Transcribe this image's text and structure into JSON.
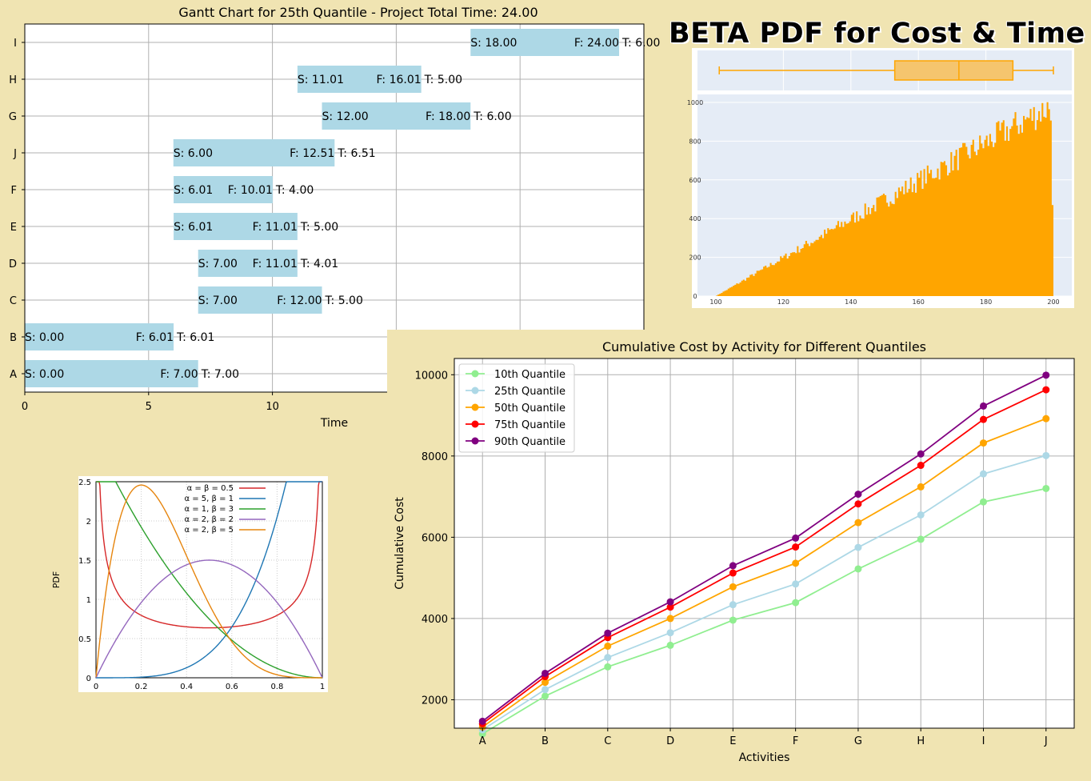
{
  "headline": "BETA PDF for Cost & Time",
  "colors": {
    "page_bg": "#f0e4b2",
    "gantt_bar": "#add8e6",
    "hist": "#ffa500",
    "plot_bg": "#e5ecf6",
    "q10": "#90ee90",
    "q25": "#add8e6",
    "q50": "#ffa500",
    "q75": "#ff0000",
    "q90": "#800080"
  },
  "chart_data": [
    {
      "type": "bar",
      "orientation": "horizontal",
      "title": "Gantt Chart for 25th Quantile - Project Total Time: 24.00",
      "xlabel": "Time",
      "ylabel": "",
      "xlim": [
        0,
        25
      ],
      "xticks": [
        "0",
        "5",
        "10"
      ],
      "grid": true,
      "tasks": [
        {
          "name": "I",
          "start": 18.0,
          "finish": 24.0,
          "start_label": "S: 18.00",
          "finish_label": "F: 24.00",
          "dur_label": "T: 6.00"
        },
        {
          "name": "H",
          "start": 11.01,
          "finish": 16.01,
          "start_label": "S: 11.01",
          "finish_label": "F: 16.01",
          "dur_label": "T: 5.00"
        },
        {
          "name": "G",
          "start": 12.0,
          "finish": 18.0,
          "start_label": "S: 12.00",
          "finish_label": "F: 18.00",
          "dur_label": "T: 6.00"
        },
        {
          "name": "J",
          "start": 6.0,
          "finish": 12.51,
          "start_label": "S: 6.00",
          "finish_label": "F: 12.51",
          "dur_label": "T: 6.51"
        },
        {
          "name": "F",
          "start": 6.01,
          "finish": 10.01,
          "start_label": "S: 6.01",
          "finish_label": "F: 10.01",
          "dur_label": "T: 4.00"
        },
        {
          "name": "E",
          "start": 6.01,
          "finish": 11.01,
          "start_label": "S: 6.01",
          "finish_label": "F: 11.01",
          "dur_label": "T: 5.00"
        },
        {
          "name": "D",
          "start": 7.0,
          "finish": 11.01,
          "start_label": "S: 7.00",
          "finish_label": "F: 11.01",
          "dur_label": "T: 4.01"
        },
        {
          "name": "C",
          "start": 7.0,
          "finish": 12.0,
          "start_label": "S: 7.00",
          "finish_label": "F: 12.00",
          "dur_label": "T: 5.00"
        },
        {
          "name": "B",
          "start": 0.0,
          "finish": 6.01,
          "start_label": "S: 0.00",
          "finish_label": "F: 6.01",
          "dur_label": "T: 6.01"
        },
        {
          "name": "A",
          "start": 0.0,
          "finish": 7.0,
          "start_label": "S: 0.00",
          "finish_label": "F: 7.00",
          "dur_label": "T: 7.00"
        }
      ]
    },
    {
      "type": "histogram",
      "title": "",
      "xlabel": "",
      "ylabel": "",
      "xlim": [
        100,
        200
      ],
      "ylim": [
        0,
        1000
      ],
      "xticks": [
        "100",
        "120",
        "140",
        "160",
        "180",
        "200"
      ],
      "yticks": [
        "0",
        "200",
        "400",
        "600",
        "800",
        "1000"
      ],
      "description_shape": "linearly increasing density, peak near 200",
      "bin_start": 100,
      "bin_end": 200,
      "density_at_start": 0,
      "density_at_end": 1000,
      "box": {
        "min": 101,
        "q1": 153,
        "median": 172,
        "q3": 188,
        "max": 200
      }
    },
    {
      "type": "line",
      "title": "",
      "xlabel": "",
      "ylabel": "PDF",
      "xlim": [
        0,
        1
      ],
      "ylim": [
        0,
        2.5
      ],
      "xticks": [
        "0",
        "0.2",
        "0.4",
        "0.6",
        "0.8",
        "1"
      ],
      "yticks": [
        "0",
        "0.5",
        "1",
        "1.5",
        "2",
        "2.5"
      ],
      "legend_position": "top-right",
      "series": [
        {
          "name": "α = β = 0.5",
          "alpha": 0.5,
          "beta": 0.5,
          "color": "#d62728"
        },
        {
          "name": "α = 5, β = 1",
          "alpha": 5,
          "beta": 1,
          "color": "#1f77b4"
        },
        {
          "name": "α = 1, β = 3",
          "alpha": 1,
          "beta": 3,
          "color": "#2ca02c"
        },
        {
          "name": "α = 2, β = 2",
          "alpha": 2,
          "beta": 2,
          "color": "#9467bd"
        },
        {
          "name": "α = 2, β = 5",
          "alpha": 2,
          "beta": 5,
          "color": "#e6850e"
        }
      ]
    },
    {
      "type": "line",
      "title": "Cumulative Cost by Activity for Different Quantiles",
      "xlabel": "Activities",
      "ylabel": "Cumulative Cost",
      "categories": [
        "A",
        "B",
        "C",
        "D",
        "E",
        "F",
        "G",
        "H",
        "I",
        "J"
      ],
      "ylim": [
        1300,
        10400
      ],
      "yticks": [
        "2000",
        "4000",
        "6000",
        "8000",
        "10000"
      ],
      "grid": true,
      "legend_position": "top-left",
      "series": [
        {
          "name": "10th Quantile",
          "color": "#90ee90",
          "values": [
            1160,
            2090,
            2810,
            3340,
            3960,
            4390,
            5220,
            5950,
            6870,
            7200
          ]
        },
        {
          "name": "25th Quantile",
          "color": "#add8e6",
          "values": [
            1260,
            2250,
            3040,
            3650,
            4340,
            4850,
            5750,
            6550,
            7560,
            8010
          ]
        },
        {
          "name": "50th Quantile",
          "color": "#ffa500",
          "values": [
            1330,
            2430,
            3320,
            4000,
            4780,
            5360,
            6360,
            7240,
            8320,
            8920
          ]
        },
        {
          "name": "75th Quantile",
          "color": "#ff0000",
          "values": [
            1410,
            2570,
            3530,
            4280,
            5120,
            5760,
            6820,
            7770,
            8900,
            9630
          ]
        },
        {
          "name": "90th Quantile",
          "color": "#800080",
          "values": [
            1470,
            2650,
            3640,
            4410,
            5300,
            5980,
            7060,
            8050,
            9230,
            9990
          ]
        }
      ]
    }
  ]
}
